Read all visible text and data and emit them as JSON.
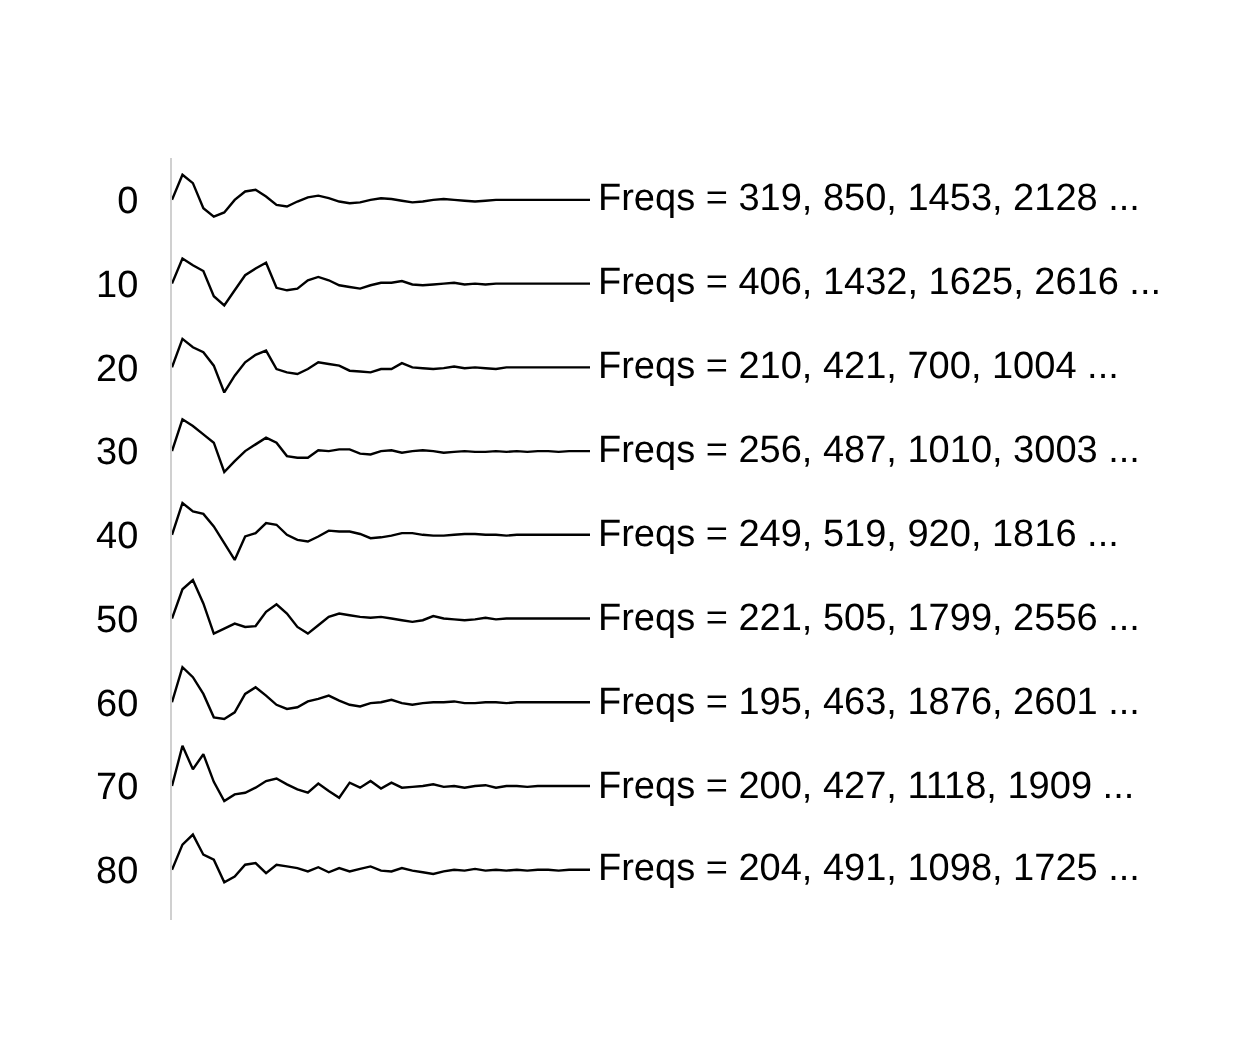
{
  "chart_data": {
    "type": "line",
    "categories": [
      null,
      null,
      null,
      null,
      null,
      null,
      null,
      null,
      null,
      null,
      null,
      null,
      null,
      null,
      null,
      null,
      null,
      null,
      null,
      null,
      null,
      null,
      null,
      null,
      null,
      null,
      null,
      null,
      null,
      null,
      null,
      null,
      null,
      null,
      null,
      null,
      null,
      null,
      null,
      null,
      null
    ],
    "ylim": [
      86,
      -5
    ],
    "yticks": [
      0,
      10,
      20,
      30,
      40,
      50,
      60,
      70,
      80
    ],
    "tick_labels": "y",
    "grid": false,
    "legend": false,
    "marker": "none",
    "line_style": "solid",
    "series": [
      {
        "name": "Freqs = 319, 850, 1453, 2128 ...",
        "color": "#000000",
        "values": [
          0,
          -3,
          -2,
          1,
          2,
          1.5,
          0,
          -1,
          -1.2,
          -0.4,
          0.6,
          0.8,
          0.2,
          -0.3,
          -0.5,
          -0.2,
          0.2,
          0.4,
          0.3,
          0,
          -0.2,
          -0.1,
          0.1,
          0.3,
          0.2,
          0,
          -0.1,
          0,
          0.1,
          0.2,
          0.1,
          0,
          0,
          0,
          0,
          0,
          0,
          0,
          0,
          0,
          0
        ]
      },
      {
        "name": "Freqs = 406, 1432, 1625, 2616 ...",
        "color": "#000000",
        "values": [
          10,
          7,
          7.8,
          8.5,
          11.5,
          12.6,
          10.8,
          9,
          8.2,
          7.5,
          10.5,
          10.8,
          10.6,
          9.6,
          9.2,
          9.6,
          10.2,
          10.4,
          10.6,
          10.2,
          9.9,
          9.9,
          9.7,
          10.1,
          10.2,
          10.1,
          10,
          9.9,
          10.1,
          10,
          10.1,
          10,
          10,
          10,
          10,
          10,
          10,
          10,
          10,
          10,
          10
        ]
      },
      {
        "name": "Freqs = 210, 421, 700, 1004 ...",
        "color": "#000000",
        "values": [
          20,
          16.6,
          17.6,
          18.2,
          19.8,
          23,
          21,
          19.4,
          18.5,
          18,
          20.2,
          20.6,
          20.8,
          20.2,
          19.4,
          19.6,
          19.8,
          20.4,
          20.5,
          20.6,
          20.2,
          20.2,
          19.5,
          20,
          20.1,
          20.2,
          20.1,
          19.9,
          20.1,
          20,
          20.1,
          20.2,
          20,
          20,
          20,
          20,
          20,
          20,
          20,
          20,
          20
        ]
      },
      {
        "name": "Freqs = 256, 487, 1010, 3003 ...",
        "color": "#000000",
        "values": [
          30,
          26.2,
          27,
          28,
          29,
          32.5,
          31.2,
          30,
          29.2,
          28.4,
          29,
          30.6,
          30.8,
          30.8,
          29.9,
          30,
          29.8,
          29.8,
          30.3,
          30.4,
          30,
          29.9,
          30.2,
          30,
          29.9,
          30,
          30.2,
          30.1,
          30,
          30.1,
          30.1,
          30,
          30.1,
          30,
          30.1,
          30,
          30,
          30.1,
          30,
          30,
          30
        ]
      },
      {
        "name": "Freqs = 249, 519, 920, 1816 ...",
        "color": "#000000",
        "values": [
          40,
          36.2,
          37.2,
          37.5,
          39,
          41,
          43,
          40.2,
          39.8,
          38.6,
          38.8,
          40,
          40.6,
          40.8,
          40.2,
          39.5,
          39.6,
          39.6,
          39.9,
          40.4,
          40.3,
          40.1,
          39.8,
          39.8,
          40,
          40.1,
          40.1,
          40,
          39.9,
          39.9,
          40,
          40,
          40.1,
          40,
          40,
          40,
          40,
          40,
          40,
          40,
          40
        ]
      },
      {
        "name": "Freqs = 221, 505, 1799, 2556 ...",
        "color": "#000000",
        "values": [
          50,
          46.5,
          45.4,
          48.2,
          51.8,
          51.2,
          50.6,
          51,
          50.9,
          49.2,
          48.3,
          49.4,
          51,
          51.8,
          50.8,
          49.8,
          49.4,
          49.6,
          49.8,
          49.9,
          49.8,
          50,
          50.2,
          50.4,
          50.2,
          49.7,
          50,
          50.1,
          50.2,
          50.1,
          49.9,
          50.1,
          50,
          50,
          50,
          50,
          50,
          50,
          50,
          50,
          50
        ]
      },
      {
        "name": "Freqs = 195, 463, 1876, 2601 ...",
        "color": "#000000",
        "values": [
          60,
          55.8,
          57,
          59,
          61.8,
          62,
          61.2,
          59,
          58.2,
          59.2,
          60.3,
          60.8,
          60.6,
          59.9,
          59.6,
          59.2,
          59.8,
          60.3,
          60.5,
          60.1,
          60,
          59.7,
          60.1,
          60.3,
          60.1,
          60,
          60,
          59.9,
          60.1,
          60.1,
          60,
          60,
          60.1,
          60,
          60,
          60,
          60,
          60,
          60,
          60,
          60
        ]
      },
      {
        "name": "Freqs = 200, 427, 1118, 1909 ...",
        "color": "#000000",
        "values": [
          70,
          65.2,
          68,
          66.2,
          69.5,
          71.8,
          71,
          70.8,
          70.2,
          69.4,
          69.1,
          69.8,
          70.4,
          70.8,
          69.7,
          70.6,
          71.4,
          69.6,
          70.2,
          69.4,
          70.3,
          69.6,
          70.2,
          70.1,
          70,
          69.8,
          70.1,
          70,
          70.2,
          70,
          69.9,
          70.2,
          70,
          70,
          70.1,
          70,
          70,
          70,
          70,
          70,
          70
        ]
      },
      {
        "name": "Freqs = 204, 491, 1098, 1725 ...",
        "color": "#000000",
        "values": [
          80,
          77,
          75.8,
          78.2,
          78.8,
          81.5,
          80.8,
          79.4,
          79.2,
          80.4,
          79.4,
          79.6,
          79.8,
          80.2,
          79.7,
          80.3,
          79.8,
          80.2,
          79.9,
          79.6,
          80.1,
          80.2,
          79.8,
          80.1,
          80.3,
          80.5,
          80.2,
          80,
          80.1,
          79.9,
          80.1,
          80,
          80.1,
          80,
          80.1,
          80,
          80,
          80.1,
          80,
          80,
          80
        ]
      }
    ]
  }
}
